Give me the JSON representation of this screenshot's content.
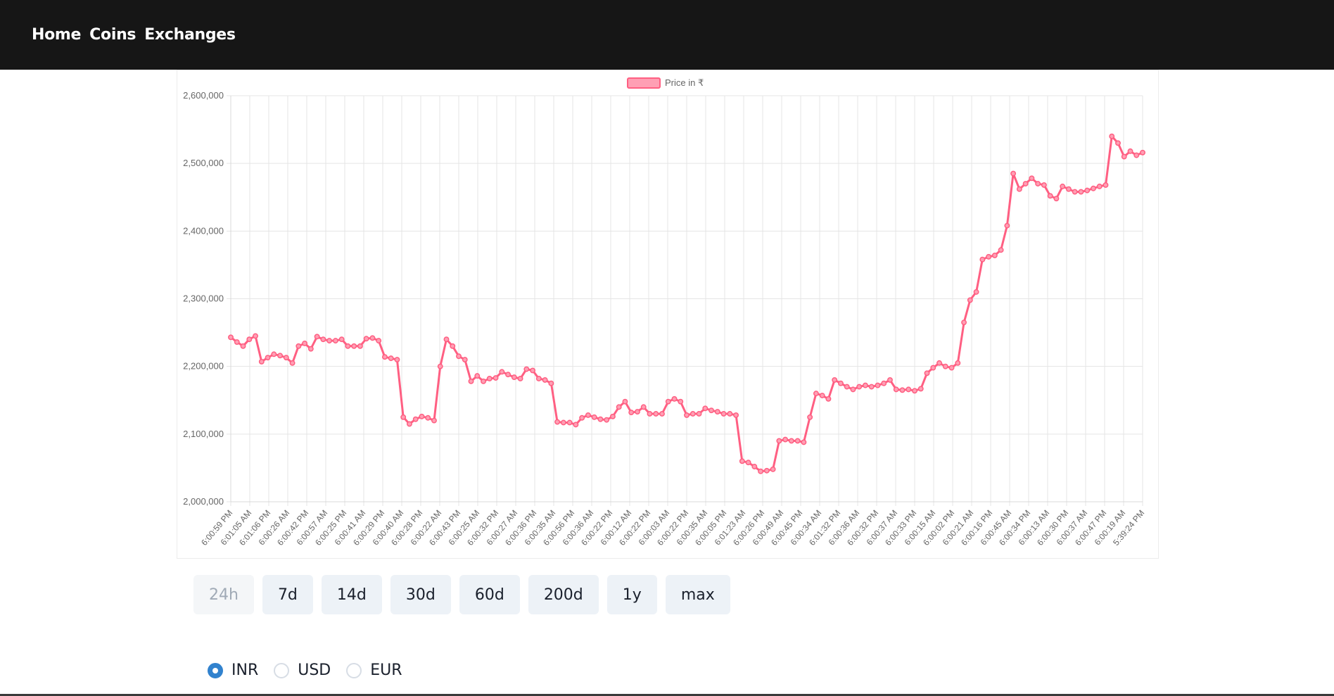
{
  "nav": {
    "links": [
      "Home",
      "Coins",
      "Exchanges"
    ]
  },
  "colors": {
    "line": "#ff5f82",
    "fill": "#ff9fb4",
    "grid": "#e5e5e5",
    "text": "#666666"
  },
  "chart_data": {
    "type": "line",
    "legend": "Price in ₹",
    "legend_position": "top",
    "grid": true,
    "ylim": [
      2000000,
      2600000
    ],
    "yticks": [
      2000000,
      2100000,
      2200000,
      2300000,
      2400000,
      2500000,
      2600000
    ],
    "ytick_labels": [
      "2,000,000",
      "2,100,000",
      "2,200,000",
      "2,300,000",
      "2,400,000",
      "2,500,000",
      "2,600,000"
    ],
    "xtick_labels": [
      "6:00:59 PM",
      "6:01:05 AM",
      "6:01:06 PM",
      "6:00:26 AM",
      "6:00:42 PM",
      "6:00:57 AM",
      "6:00:25 PM",
      "6:00:41 AM",
      "6:00:29 PM",
      "6:00:40 AM",
      "6:00:28 PM",
      "6:00:22 AM",
      "6:00:43 PM",
      "6:00:25 AM",
      "6:00:32 PM",
      "6:00:27 AM",
      "6:00:36 PM",
      "6:00:35 AM",
      "6:00:56 PM",
      "6:00:36 AM",
      "6:00:22 PM",
      "6:00:12 AM",
      "6:00:22 PM",
      "6:00:03 AM",
      "6:00:22 PM",
      "6:00:35 AM",
      "6:00:05 PM",
      "6:01:23 AM",
      "6:00:26 PM",
      "6:00:49 AM",
      "6:00:45 PM",
      "6:00:34 AM",
      "6:01:32 PM",
      "6:00:36 AM",
      "6:00:32 PM",
      "6:00:37 AM",
      "6:00:33 PM",
      "6:00:15 AM",
      "6:00:02 PM",
      "6:00:21 AM",
      "6:00:16 PM",
      "6:00:45 AM",
      "6:00:34 PM",
      "6:00:13 AM",
      "6:00:30 PM",
      "6:00:37 AM",
      "6:00:47 PM",
      "6:00:19 AM",
      "5:39:24 PM"
    ],
    "values": [
      2243000,
      2236000,
      2230000,
      2240000,
      2245000,
      2207000,
      2213000,
      2218000,
      2216000,
      2213000,
      2205000,
      2230000,
      2234000,
      2226000,
      2244000,
      2240000,
      2238000,
      2238000,
      2240000,
      2230000,
      2230000,
      2230000,
      2241000,
      2242000,
      2238000,
      2214000,
      2212000,
      2210000,
      2125000,
      2115000,
      2122000,
      2126000,
      2124000,
      2120000,
      2200000,
      2240000,
      2230000,
      2215000,
      2210000,
      2178000,
      2186000,
      2178000,
      2182000,
      2183000,
      2192000,
      2188000,
      2184000,
      2182000,
      2196000,
      2194000,
      2182000,
      2180000,
      2175000,
      2118000,
      2117000,
      2117000,
      2114000,
      2124000,
      2128000,
      2125000,
      2122000,
      2121000,
      2126000,
      2140000,
      2148000,
      2132000,
      2133000,
      2140000,
      2130000,
      2130000,
      2130000,
      2148000,
      2152000,
      2148000,
      2128000,
      2130000,
      2130000,
      2138000,
      2135000,
      2133000,
      2130000,
      2130000,
      2128000,
      2060000,
      2058000,
      2052000,
      2045000,
      2046000,
      2048000,
      2090000,
      2092000,
      2090000,
      2090000,
      2088000,
      2125000,
      2160000,
      2157000,
      2152000,
      2180000,
      2175000,
      2170000,
      2166000,
      2170000,
      2172000,
      2170000,
      2172000,
      2175000,
      2180000,
      2166000,
      2165000,
      2166000,
      2164000,
      2167000,
      2190000,
      2198000,
      2205000,
      2200000,
      2198000,
      2205000,
      2265000,
      2298000,
      2310000,
      2358000,
      2362000,
      2364000,
      2372000,
      2408000,
      2485000,
      2462000,
      2470000,
      2478000,
      2470000,
      2468000,
      2452000,
      2448000,
      2466000,
      2462000,
      2458000,
      2458000,
      2460000,
      2463000,
      2466000,
      2468000,
      2540000,
      2530000,
      2510000,
      2518000,
      2512000,
      2516000
    ]
  },
  "periods": {
    "items": [
      "24h",
      "7d",
      "14d",
      "30d",
      "60d",
      "200d",
      "1y",
      "max"
    ],
    "selected": "24h"
  },
  "currency": {
    "options": [
      "INR",
      "USD",
      "EUR"
    ],
    "selected": "INR"
  }
}
